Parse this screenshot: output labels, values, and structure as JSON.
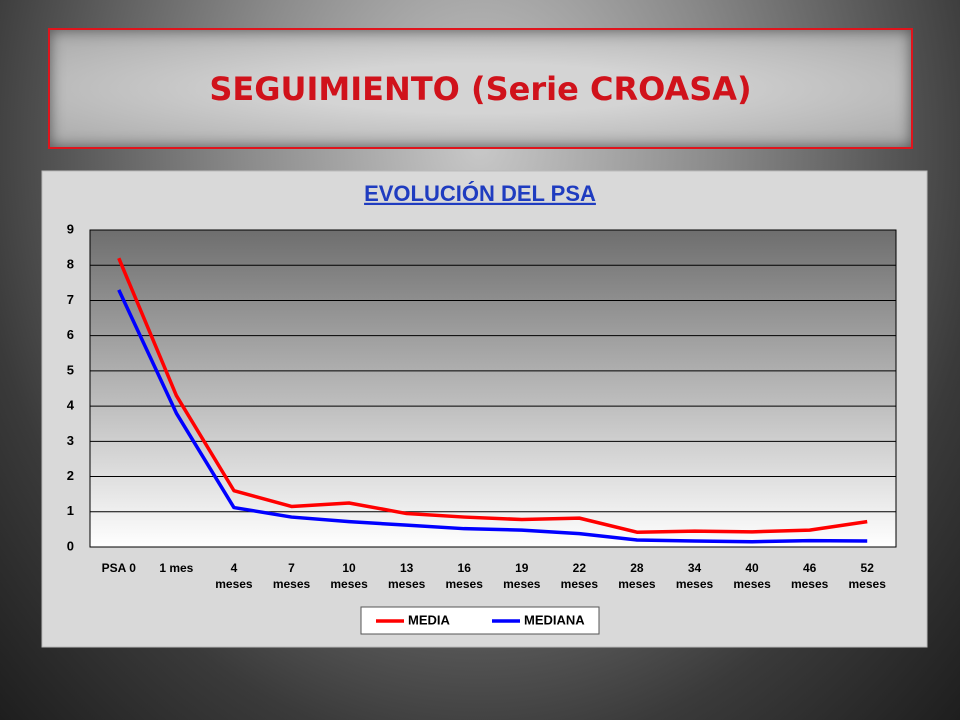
{
  "slide": {
    "title": "SEGUIMIENTO (Serie CROASA)"
  },
  "chart_data": {
    "type": "line",
    "title": "EVOLUCIÓN DEL PSA",
    "categories": [
      "PSA 0",
      "1 mes",
      "4 meses",
      "7 meses",
      "10 meses",
      "13 meses",
      "16 meses",
      "19 meses",
      "22 meses",
      "28 meses",
      "34 meses",
      "40 meses",
      "46 meses",
      "52 meses"
    ],
    "series": [
      {
        "name": "MEDIA",
        "color": "#ff0000",
        "values": [
          8.2,
          4.3,
          1.6,
          1.15,
          1.25,
          0.95,
          0.85,
          0.78,
          0.82,
          0.42,
          0.45,
          0.43,
          0.48,
          0.72
        ]
      },
      {
        "name": "MEDIANA",
        "color": "#0000ff",
        "values": [
          7.3,
          3.8,
          1.12,
          0.85,
          0.72,
          0.62,
          0.52,
          0.48,
          0.38,
          0.2,
          0.17,
          0.15,
          0.18,
          0.17
        ]
      }
    ],
    "ylim": [
      0,
      9
    ],
    "yticks": [
      0,
      1,
      2,
      3,
      4,
      5,
      6,
      7,
      8,
      9
    ],
    "grid": true,
    "legend": "bottom"
  }
}
